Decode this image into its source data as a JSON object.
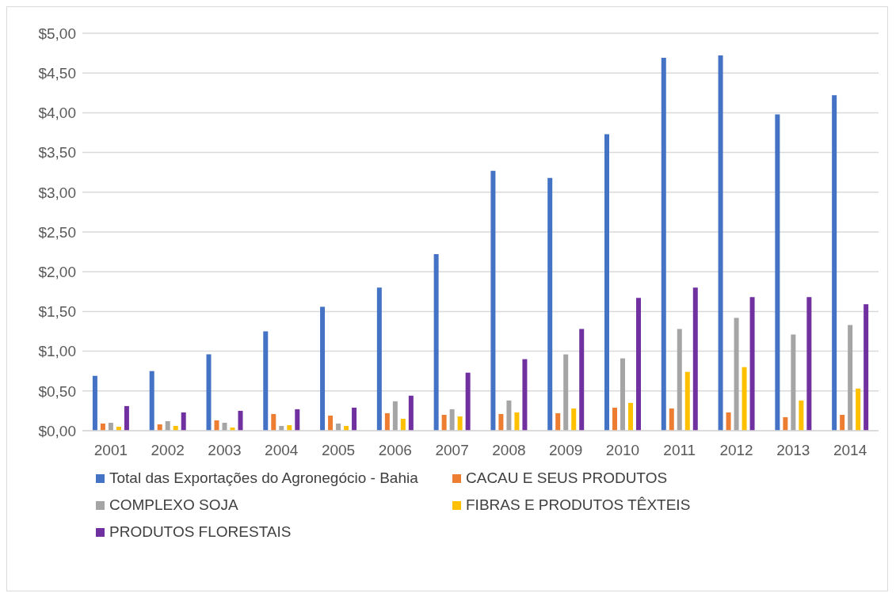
{
  "chart_data": {
    "type": "bar",
    "categories": [
      "2001",
      "2002",
      "2003",
      "2004",
      "2005",
      "2006",
      "2007",
      "2008",
      "2009",
      "2010",
      "2011",
      "2012",
      "2013",
      "2014"
    ],
    "series": [
      {
        "name": "Total das Exportações do Agronegócio - Bahia",
        "color": "#4472c4",
        "values": [
          0.69,
          0.75,
          0.96,
          1.25,
          1.56,
          1.8,
          2.22,
          3.27,
          3.18,
          3.73,
          4.69,
          4.72,
          3.98,
          4.22
        ]
      },
      {
        "name": "CACAU E SEUS PRODUTOS",
        "color": "#ed7d31",
        "values": [
          0.09,
          0.08,
          0.13,
          0.21,
          0.19,
          0.22,
          0.2,
          0.21,
          0.22,
          0.29,
          0.28,
          0.23,
          0.17,
          0.2
        ]
      },
      {
        "name": "COMPLEXO SOJA",
        "color": "#a5a5a5",
        "values": [
          0.1,
          0.12,
          0.1,
          0.06,
          0.09,
          0.37,
          0.27,
          0.38,
          0.96,
          0.91,
          1.28,
          1.42,
          1.21,
          1.33
        ]
      },
      {
        "name": "FIBRAS E PRODUTOS TÊXTEIS",
        "color": "#ffc000",
        "values": [
          0.05,
          0.06,
          0.04,
          0.07,
          0.06,
          0.15,
          0.18,
          0.23,
          0.28,
          0.35,
          0.74,
          0.8,
          0.38,
          0.53
        ]
      },
      {
        "name": "PRODUTOS FLORESTAIS",
        "color": "#7030a0",
        "values": [
          0.31,
          0.23,
          0.25,
          0.27,
          0.29,
          0.44,
          0.73,
          0.9,
          1.28,
          1.67,
          1.8,
          1.68,
          1.68,
          1.59
        ]
      }
    ],
    "ylim": [
      0,
      5
    ],
    "yticks": [
      {
        "value": 0,
        "label": "$0,00"
      },
      {
        "value": 0.5,
        "label": "$0,50"
      },
      {
        "value": 1,
        "label": "$1,00"
      },
      {
        "value": 1.5,
        "label": "$1,50"
      },
      {
        "value": 2,
        "label": "$2,00"
      },
      {
        "value": 2.5,
        "label": "$2,50"
      },
      {
        "value": 3,
        "label": "$3,00"
      },
      {
        "value": 3.5,
        "label": "$3,50"
      },
      {
        "value": 4,
        "label": "$4,00"
      },
      {
        "value": 4.5,
        "label": "$4,50"
      },
      {
        "value": 5,
        "label": "$5,00"
      }
    ],
    "grid": "y",
    "legend": "bottom"
  }
}
